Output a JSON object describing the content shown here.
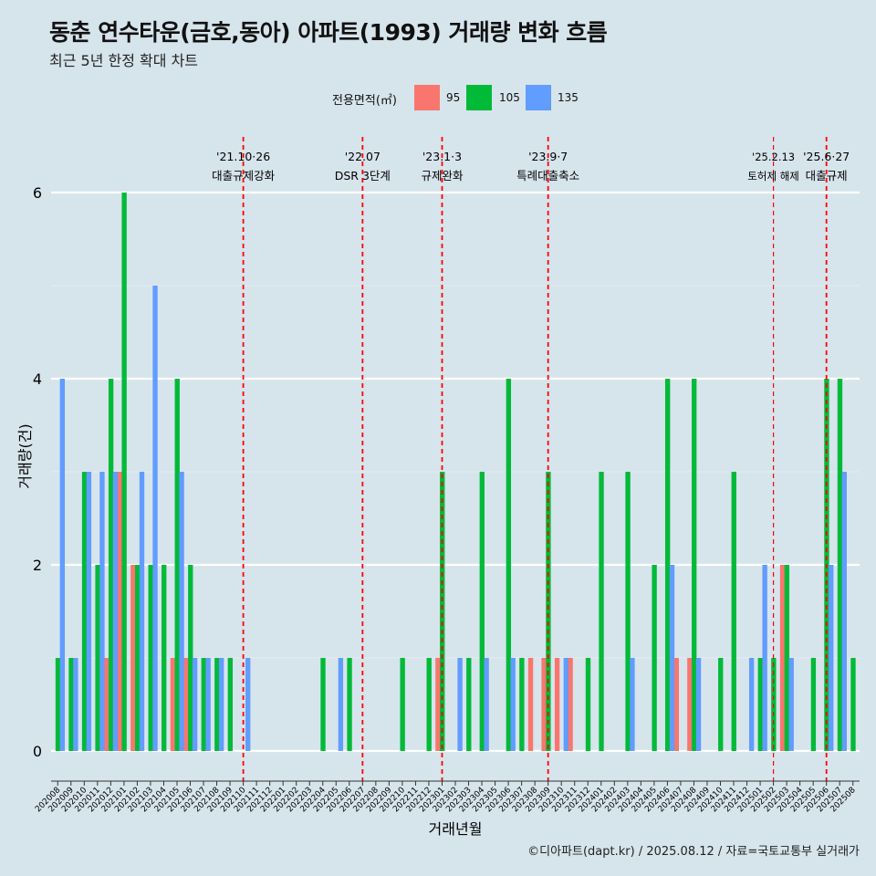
{
  "title": "동춘 연수타운(금호,동아) 아파트(1993) 거래량 변화 흐름",
  "subtitle": "최근 5년 한정 확대 차트",
  "footer": "©디아파트(dapt.kr) / 2025.08.12 / 자료=국토교통부 실거래가",
  "legend": {
    "title": "전용면적(㎡)",
    "items": [
      {
        "label": "95",
        "color": "#f8766d"
      },
      {
        "label": "105",
        "color": "#00ba38"
      },
      {
        "label": "135",
        "color": "#619cff"
      }
    ]
  },
  "chart_data": {
    "type": "bar",
    "xlabel": "거래년월",
    "ylabel": "거래량(건)",
    "ylim": [
      0,
      6.5
    ],
    "yticks": [
      0,
      2,
      4,
      6
    ],
    "grid": true,
    "legend_position": "top",
    "categories": [
      "202008",
      "202009",
      "202010",
      "202011",
      "202012",
      "202101",
      "202102",
      "202103",
      "202104",
      "202105",
      "202106",
      "202107",
      "202108",
      "202109",
      "202110",
      "202111",
      "202112",
      "202201",
      "202202",
      "202203",
      "202204",
      "202205",
      "202206",
      "202207",
      "202208",
      "202209",
      "202210",
      "202211",
      "202212",
      "202301",
      "202302",
      "202303",
      "202304",
      "202305",
      "202306",
      "202307",
      "202308",
      "202309",
      "202310",
      "202311",
      "202312",
      "202401",
      "202402",
      "202403",
      "202404",
      "202405",
      "202406",
      "202407",
      "202408",
      "202409",
      "202410",
      "202411",
      "202412",
      "202501",
      "202502",
      "202503",
      "202504",
      "202505",
      "202506",
      "202507",
      "202508"
    ],
    "series": [
      {
        "name": "95",
        "color": "#f8766d",
        "values": [
          0,
          0,
          0,
          0,
          1,
          3,
          2,
          0,
          0,
          1,
          1,
          0,
          0,
          0,
          0,
          0,
          0,
          0,
          0,
          0,
          0,
          0,
          0,
          0,
          0,
          0,
          0,
          0,
          0,
          1,
          0,
          0,
          0,
          0,
          0,
          0,
          1,
          1,
          1,
          1,
          0,
          0,
          0,
          0,
          0,
          0,
          0,
          1,
          1,
          0,
          0,
          0,
          0,
          0,
          0,
          2,
          0,
          0,
          0,
          0,
          0
        ]
      },
      {
        "name": "105",
        "color": "#00ba38",
        "values": [
          1,
          1,
          3,
          2,
          4,
          6,
          2,
          2,
          2,
          4,
          2,
          1,
          1,
          1,
          0,
          0,
          0,
          0,
          0,
          0,
          1,
          0,
          1,
          0,
          0,
          0,
          1,
          0,
          1,
          3,
          0,
          1,
          3,
          0,
          4,
          1,
          0,
          3,
          0,
          0,
          1,
          3,
          0,
          3,
          0,
          2,
          4,
          0,
          4,
          0,
          1,
          3,
          0,
          1,
          1,
          2,
          0,
          1,
          4,
          4,
          1
        ]
      },
      {
        "name": "135",
        "color": "#619cff",
        "values": [
          4,
          1,
          3,
          3,
          3,
          0,
          3,
          5,
          0,
          3,
          1,
          1,
          1,
          0,
          1,
          0,
          0,
          0,
          0,
          0,
          0,
          1,
          0,
          0,
          0,
          0,
          0,
          0,
          0,
          0,
          1,
          0,
          1,
          0,
          1,
          0,
          0,
          0,
          1,
          0,
          0,
          0,
          0,
          1,
          0,
          0,
          2,
          0,
          1,
          0,
          0,
          0,
          1,
          2,
          0,
          1,
          0,
          0,
          2,
          3,
          0
        ]
      }
    ],
    "annotations": [
      {
        "date": "202110",
        "date_label": "'21.10·26",
        "label": "대출규제강화"
      },
      {
        "date": "202207",
        "date_label": "'22.07",
        "label": "DSR 3단계"
      },
      {
        "date": "202301",
        "date_label": "'23.1·3",
        "label": "규제완화"
      },
      {
        "date": "202309",
        "date_label": "'23.9·7",
        "label": "특례대출축소"
      },
      {
        "date": "202502",
        "date_label": "'25.2.13",
        "label": "토허제 해제"
      },
      {
        "date": "202506",
        "date_label": "'25.6·27",
        "label": "대출규제"
      }
    ]
  }
}
